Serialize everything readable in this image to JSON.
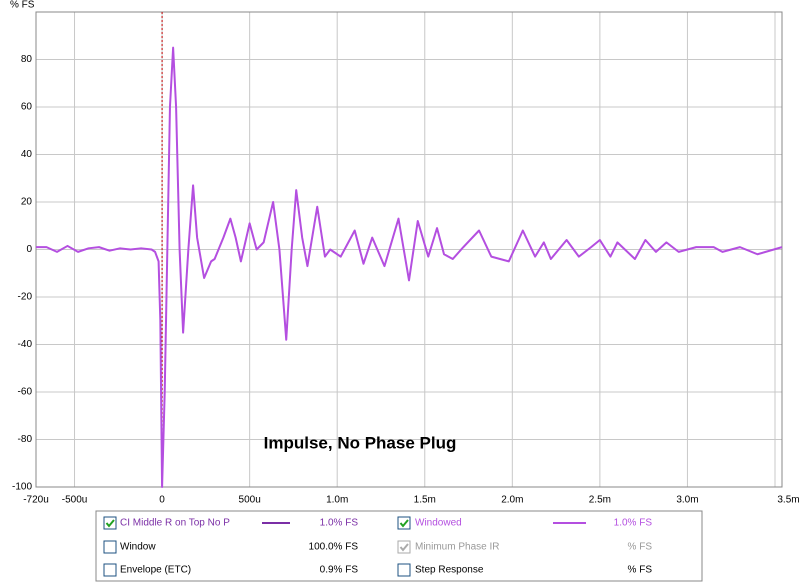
{
  "chart_data": {
    "type": "line",
    "y_axis_label": "% FS",
    "annotation": "Impulse, No Phase Plug",
    "xlim": [
      -0.00072,
      0.00354
    ],
    "ylim": [
      -100,
      100
    ],
    "xticks": [
      {
        "value": -0.00072,
        "label": "-720u"
      },
      {
        "value": -0.0005,
        "label": "-500u"
      },
      0,
      {
        "value": 0.0005,
        "label": "500u"
      },
      {
        "value": 0.001,
        "label": "1.0m"
      },
      {
        "value": 0.0015,
        "label": "1.5m"
      },
      {
        "value": 0.002,
        "label": "2.0m"
      },
      {
        "value": 0.0025,
        "label": "2.5m"
      },
      {
        "value": 0.003,
        "label": "3.0m"
      },
      {
        "value": 0.0035,
        "label": "3.5ms"
      }
    ],
    "yticks": [
      -100,
      -80,
      -60,
      -40,
      -20,
      0,
      20,
      40,
      60,
      80
    ],
    "grid": true,
    "x": [
      -0.00072,
      -0.00066,
      -0.0006,
      -0.00054,
      -0.00048,
      -0.00042,
      -0.00036,
      -0.0003,
      -0.00024,
      -0.00018,
      -0.00012,
      -6e-05,
      -4e-05,
      -2e-05,
      -1e-05,
      0,
      1.5e-05,
      3e-05,
      4.5e-05,
      6.3e-05,
      8e-05,
      0.0001,
      0.00012,
      0.00015,
      0.000177,
      0.0002,
      0.00024,
      0.00028,
      0.0003,
      0.00035,
      0.00039,
      0.00042,
      0.00045,
      0.0005,
      0.00054,
      0.00058,
      0.000634,
      0.00067,
      0.000709,
      0.00074,
      0.000766,
      0.0008,
      0.00083,
      0.000886,
      0.00093,
      0.00096,
      0.00098,
      0.00102,
      0.0011,
      0.00115,
      0.0012,
      0.00127,
      0.00135,
      0.00141,
      0.00146,
      0.00152,
      0.00157,
      0.00161,
      0.00166,
      0.00172,
      0.00181,
      0.00188,
      0.00198,
      0.00206,
      0.00213,
      0.00218,
      0.00222,
      0.00231,
      0.00238,
      0.00245,
      0.0025,
      0.00256,
      0.0026,
      0.0027,
      0.00276,
      0.00282,
      0.00288,
      0.00295,
      0.00305,
      0.00315,
      0.0032,
      0.0033,
      0.0034,
      0.00354
    ],
    "series": [
      {
        "name": "Windowed",
        "color": "#b44fe0",
        "values": [
          1,
          1,
          -1,
          1.5,
          -1,
          0.5,
          1,
          -0.5,
          0.5,
          0,
          0.5,
          0,
          -1,
          -5,
          -30,
          -100,
          -60,
          0,
          60,
          85,
          60,
          0,
          -35,
          0,
          27,
          5,
          -12,
          -5,
          -4,
          5,
          13,
          5,
          -5,
          11,
          0,
          3,
          20,
          0,
          -38,
          0,
          25,
          5,
          -7,
          18,
          -3,
          0,
          -1,
          -3,
          8,
          -6,
          5,
          -7,
          13,
          -13,
          12,
          -3,
          9,
          -2,
          -4,
          1,
          8,
          -3,
          -5,
          8,
          -3,
          3,
          -4,
          4,
          -3,
          1,
          4,
          -3,
          3,
          -4,
          4,
          -1,
          3,
          -1,
          1,
          1,
          -1,
          1,
          -2,
          1
        ]
      }
    ]
  },
  "legend_panel": {
    "trace_name": "CI Middle R on Top No P",
    "trace_color": "#7b2fa6",
    "trace_value": "1.0% FS",
    "windowed_value": "1.0% FS",
    "window": "Window",
    "window_value": "100.0% FS",
    "min_phase": "Minimum Phase IR",
    "min_phase_value": "% FS",
    "envelope": "Envelope (ETC)",
    "envelope_value": "0.9% FS",
    "step": "Step Response",
    "step_value": "% FS"
  }
}
